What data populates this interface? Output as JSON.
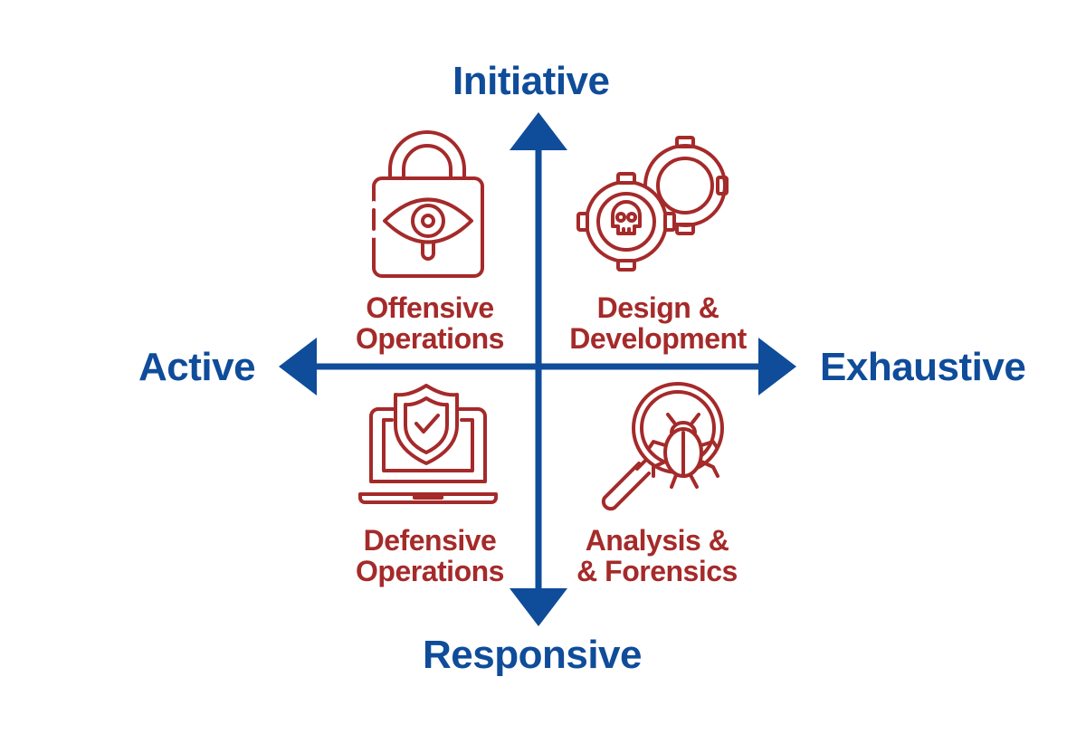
{
  "axes": {
    "top": "Initiative",
    "bottom": "Responsive",
    "left": "Active",
    "right": "Exhaustive"
  },
  "quadrants": {
    "top_left": {
      "line1": "Offensive",
      "line2": "Operations",
      "icon": "padlock-eye-icon"
    },
    "top_right": {
      "line1": "Design &",
      "line2": "Development",
      "icon": "gears-skull-icon"
    },
    "bottom_left": {
      "line1": "Defensive",
      "line2": "Operations",
      "icon": "laptop-shield-check-icon"
    },
    "bottom_right": {
      "line1": "Analysis &",
      "line2": "& Forensics",
      "icon": "magnifier-bug-icon"
    }
  },
  "colors": {
    "axis": "#0f4c9a",
    "quadrant": "#a52a2a"
  }
}
